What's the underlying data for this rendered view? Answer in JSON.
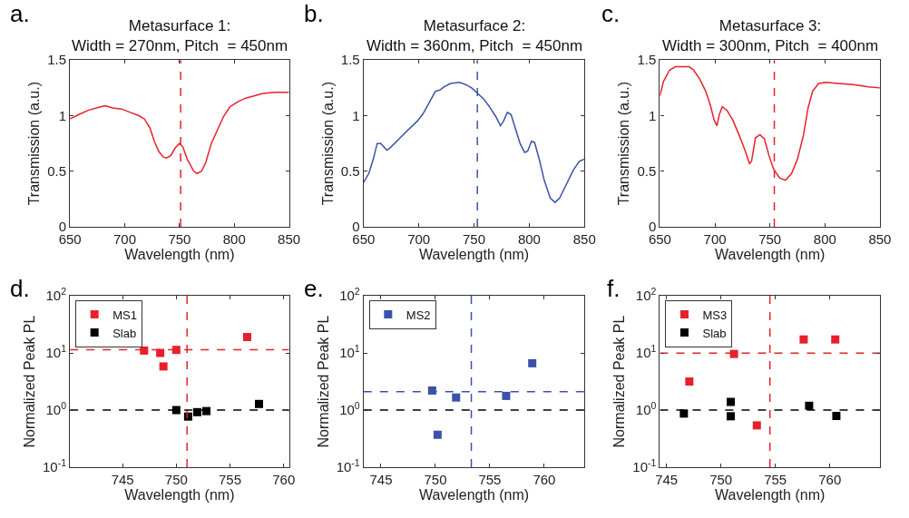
{
  "chart_data": [
    {
      "type": "line",
      "title": "Metasurface 1:\nWidth = 270nm, Pitch  = 450nm",
      "annotations": [
        "a."
      ],
      "xlabel": "Wavelength (nm)",
      "ylabel": "Transmission (a.u.)",
      "xlim": [
        650,
        850
      ],
      "ylim": [
        0,
        1.5
      ],
      "xticks": [
        650,
        700,
        750,
        800,
        850
      ],
      "yticks": [
        0,
        0.5,
        1,
        1.5
      ],
      "legend": false,
      "series": [
        {
          "color": "#e8202a",
          "x": [
            650,
            658,
            667,
            678,
            682,
            689,
            697,
            705,
            713,
            718,
            723,
            727,
            731,
            735,
            738,
            742,
            746,
            750,
            753,
            757,
            763,
            766,
            770,
            774,
            779,
            785,
            790,
            796,
            804,
            811,
            815,
            826,
            837,
            850
          ],
          "values": [
            0.97,
            1.01,
            1.05,
            1.08,
            1.09,
            1.07,
            1.06,
            1.03,
            1.0,
            0.97,
            0.89,
            0.77,
            0.68,
            0.63,
            0.62,
            0.64,
            0.71,
            0.75,
            0.72,
            0.61,
            0.5,
            0.48,
            0.5,
            0.58,
            0.75,
            0.88,
            0.99,
            1.08,
            1.13,
            1.16,
            1.17,
            1.2,
            1.21,
            1.21
          ]
        }
      ],
      "ref_lines": [
        {
          "axis": "x",
          "value": 751,
          "color": "#e8202a",
          "line_style": "dashed"
        }
      ]
    },
    {
      "type": "line",
      "title": "Metasurface 2:\nWidth = 360nm, Pitch  = 450nm",
      "annotations": [
        "b."
      ],
      "xlabel": "Wavelength (nm)",
      "ylabel": "Transmission (a.u.)",
      "xlim": [
        650,
        850
      ],
      "ylim": [
        0,
        1.5
      ],
      "xticks": [
        650,
        700,
        750,
        800,
        850
      ],
      "yticks": [
        0,
        0.5,
        1,
        1.5
      ],
      "legend": false,
      "series": [
        {
          "color": "#3a52a8",
          "x": [
            650,
            654.7,
            658.8,
            662.3,
            665.6,
            671,
            673.9,
            682,
            690,
            698.5,
            704,
            709.5,
            715,
            719,
            723,
            728.7,
            736.8,
            742.3,
            747.8,
            753.3,
            758.8,
            764,
            769.8,
            773.9,
            776.6,
            780.2,
            783.5,
            787.6,
            791.7,
            795.8,
            798.5,
            802,
            804.8,
            809.5,
            813.5,
            819,
            823.4,
            827.5,
            833,
            839.8,
            845.3,
            850
          ],
          "values": [
            0.4,
            0.48,
            0.61,
            0.75,
            0.75,
            0.69,
            0.71,
            0.79,
            0.87,
            0.95,
            1.02,
            1.12,
            1.22,
            1.23,
            1.26,
            1.29,
            1.3,
            1.28,
            1.25,
            1.2,
            1.15,
            1.08,
            0.99,
            0.91,
            0.95,
            1.03,
            1.01,
            0.88,
            0.75,
            0.67,
            0.68,
            0.77,
            0.76,
            0.59,
            0.42,
            0.26,
            0.22,
            0.26,
            0.37,
            0.51,
            0.59,
            0.61
          ]
        }
      ],
      "ref_lines": [
        {
          "axis": "x",
          "value": 753,
          "color": "#3a52a8",
          "line_style": "dashed"
        }
      ]
    },
    {
      "type": "line",
      "title": "Metasurface 3:\nWidth = 300nm, Pitch  = 400nm",
      "annotations": [
        "c."
      ],
      "xlabel": "Wavelength (nm)",
      "ylabel": "Transmission (a.u.)",
      "xlim": [
        650,
        850
      ],
      "ylim": [
        0,
        1.5
      ],
      "xticks": [
        650,
        700,
        750,
        800,
        850
      ],
      "yticks": [
        0,
        0.5,
        1,
        1.5
      ],
      "legend": false,
      "series": [
        {
          "color": "#e8202a",
          "x": [
            650,
            653.3,
            658.8,
            664.2,
            669.7,
            676.6,
            680.7,
            686.2,
            691.6,
            695.7,
            699.3,
            701.8,
            704,
            706.7,
            710.8,
            716.3,
            721.8,
            727.3,
            731.4,
            733.3,
            736.8,
            740.9,
            745,
            749.2,
            753.3,
            758.8,
            764.2,
            769.7,
            775.1,
            780.6,
            784.7,
            788.8,
            794.3,
            801.2,
            812.2,
            825.9,
            839.6,
            850
          ],
          "values": [
            1.18,
            1.31,
            1.41,
            1.44,
            1.44,
            1.44,
            1.41,
            1.33,
            1.22,
            1.1,
            0.96,
            0.91,
            1.01,
            1.08,
            1.05,
            0.96,
            0.83,
            0.69,
            0.57,
            0.59,
            0.8,
            0.83,
            0.79,
            0.64,
            0.52,
            0.44,
            0.42,
            0.48,
            0.61,
            0.83,
            1.07,
            1.22,
            1.29,
            1.3,
            1.29,
            1.28,
            1.26,
            1.25
          ]
        }
      ],
      "ref_lines": [
        {
          "axis": "x",
          "value": 754,
          "color": "#e8202a",
          "line_style": "dashed"
        }
      ]
    },
    {
      "type": "scatter",
      "annotations": [
        "d."
      ],
      "xlabel": "Wavelength (nm)",
      "ylabel": "Normalized Peak PL",
      "log": "y",
      "xlim": [
        740.1,
        760.5
      ],
      "ylim": [
        0.1,
        100
      ],
      "xticks": [
        745,
        750,
        755,
        760
      ],
      "yticks": [
        {
          "value": 0.1,
          "label": "10$^{-1}$"
        },
        {
          "value": 1,
          "label": "10$^{0}$"
        },
        {
          "value": 10,
          "label": "10$^{1}$"
        },
        {
          "value": 100,
          "label": "10$^{2}$"
        }
      ],
      "legend": "top left",
      "marker": "square",
      "series": [
        {
          "name": "MS1",
          "color": "#e8202a",
          "x": [
            747.0,
            748.5,
            748.8,
            750.0,
            756.6
          ],
          "values": [
            11,
            10,
            5.8,
            11.3,
            19
          ]
        },
        {
          "name": "Slab",
          "color": "#000000",
          "x": [
            750.0,
            751.1,
            751.95,
            752.8,
            757.7
          ],
          "values": [
            1.0,
            0.77,
            0.92,
            0.96,
            1.28
          ]
        }
      ],
      "ref_lines": [
        {
          "axis": "x",
          "value": 751,
          "color": "#e8202a",
          "line_style": "dashed"
        },
        {
          "axis": "y",
          "value": 11.4,
          "color": "#e8202a",
          "line_style": "dashed"
        },
        {
          "axis": "y",
          "value": 1,
          "color": "#000000",
          "line_style": "dashed"
        }
      ]
    },
    {
      "type": "scatter",
      "annotations": [
        "e."
      ],
      "xlabel": "Wavelength (nm)",
      "ylabel": "Normalized Peak PL",
      "log": "y",
      "xlim": [
        743.4,
        763.7
      ],
      "ylim": [
        0.1,
        100
      ],
      "xticks": [
        745,
        750,
        755,
        760
      ],
      "yticks": [
        {
          "value": 0.1,
          "label": "10$^{-1}$"
        },
        {
          "value": 1,
          "label": "10$^{0}$"
        },
        {
          "value": 10,
          "label": "10$^{1}$"
        },
        {
          "value": 100,
          "label": "10$^{2}$"
        }
      ],
      "legend": "top left",
      "marker": "square",
      "series": [
        {
          "name": "MS2",
          "color": "#3a52a8",
          "x": [
            749.7,
            750.2,
            751.9,
            756.5,
            758.9
          ],
          "values": [
            2.2,
            0.37,
            1.66,
            1.77,
            6.6
          ]
        }
      ],
      "ref_lines": [
        {
          "axis": "x",
          "value": 753.3,
          "color": "#3a52a8",
          "line_style": "dashed"
        },
        {
          "axis": "y",
          "value": 2.1,
          "color": "#3a52a8",
          "line_style": "dashed"
        },
        {
          "axis": "y",
          "value": 1,
          "color": "#000000",
          "line_style": "dashed"
        }
      ]
    },
    {
      "type": "scatter",
      "annotations": [
        "f."
      ],
      "xlabel": "Wavelength (nm)",
      "ylabel": "Normalized Peak PL",
      "log": "y",
      "xlim": [
        744.4,
        764.6
      ],
      "ylim": [
        0.1,
        100
      ],
      "xticks": [
        745,
        750,
        755,
        760
      ],
      "yticks": [
        {
          "value": 0.1,
          "label": "10$^{-1}$"
        },
        {
          "value": 1,
          "label": "10$^{0}$"
        },
        {
          "value": 10,
          "label": "10$^{1}$"
        },
        {
          "value": 100,
          "label": "10$^{2}$"
        }
      ],
      "legend": "top left",
      "marker": "square",
      "series": [
        {
          "name": "MS3",
          "color": "#e8202a",
          "x": [
            747.1,
            751.2,
            753.3,
            757.6,
            760.5
          ],
          "values": [
            3.16,
            9.6,
            0.54,
            17.2,
            17.2
          ]
        },
        {
          "name": "Slab",
          "color": "#000000",
          "x": [
            746.6,
            750.9,
            750.9,
            758.1,
            760.6
          ],
          "values": [
            0.87,
            1.39,
            0.78,
            1.19,
            0.79
          ]
        }
      ],
      "ref_lines": [
        {
          "axis": "x",
          "value": 754.5,
          "color": "#e8202a",
          "line_style": "dashed"
        },
        {
          "axis": "y",
          "value": 9.9,
          "color": "#e8202a",
          "line_style": "dashed"
        },
        {
          "axis": "y",
          "value": 1,
          "color": "#000000",
          "line_style": "dashed"
        }
      ]
    }
  ]
}
